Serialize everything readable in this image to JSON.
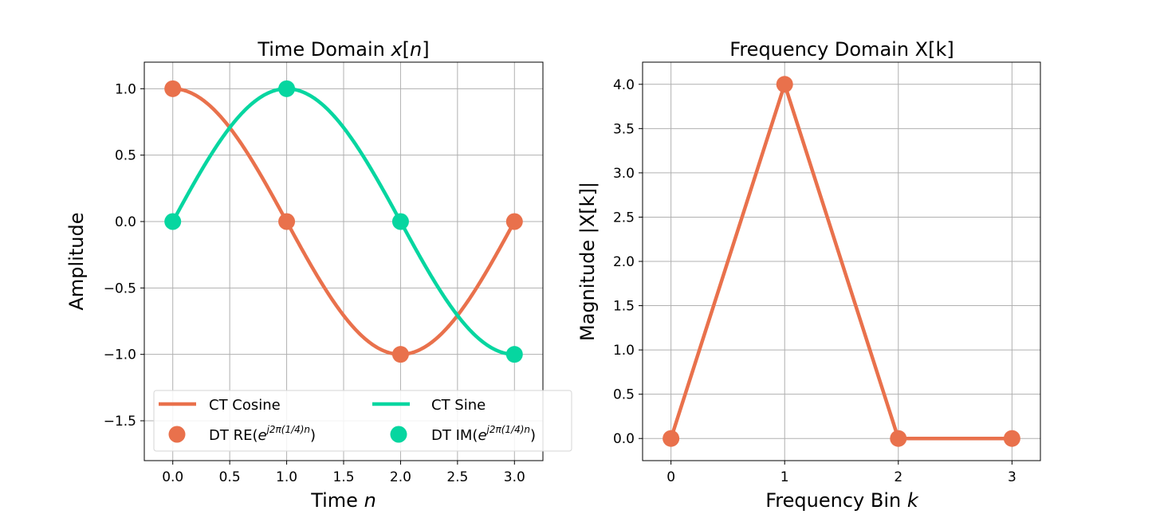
{
  "colors": {
    "cosine": "#E9714C",
    "sine": "#06D6A0",
    "grid": "#b0b0b0"
  },
  "chart_data": [
    {
      "type": "line",
      "title": "Time Domain x[n]",
      "title_parts": [
        "Time Domain ",
        "x",
        "[",
        "n",
        "]"
      ],
      "xlabel": "Time n",
      "ylabel": "Amplitude",
      "xlim": [
        -0.25,
        3.25
      ],
      "ylim": [
        -1.8,
        1.2
      ],
      "xticks": [
        0.0,
        0.5,
        1.0,
        1.5,
        2.0,
        2.5,
        3.0
      ],
      "xtick_labels": [
        "0.0",
        "0.5",
        "1.0",
        "1.5",
        "2.0",
        "2.5",
        "3.0"
      ],
      "yticks": [
        1.0,
        0.5,
        0.0,
        -0.5,
        -1.0,
        -1.5
      ],
      "ytick_labels": [
        "1.0",
        "0.5",
        "0.0",
        "−0.5",
        "−1.0",
        "−1.5"
      ],
      "grid": true,
      "legend_placement": "lower-center",
      "series": [
        {
          "name": "CT Cosine",
          "kind": "line",
          "function": "cos(2*pi*n/4)",
          "x_range": [
            0,
            3
          ],
          "color": "#E9714C"
        },
        {
          "name": "CT Sine",
          "kind": "line",
          "function": "sin(2*pi*n/4)",
          "x_range": [
            0,
            3
          ],
          "color": "#06D6A0"
        },
        {
          "name": "DT RE(e^{j2π(1/4)n})",
          "kind": "scatter",
          "x": [
            0,
            1,
            2,
            3
          ],
          "y": [
            1,
            0,
            -1,
            0
          ],
          "color": "#E9714C"
        },
        {
          "name": "DT IM(e^{j2π(1/4)n})",
          "kind": "scatter",
          "x": [
            0,
            1,
            2,
            3
          ],
          "y": [
            0,
            1,
            0,
            -1
          ],
          "color": "#06D6A0"
        }
      ],
      "legend": {
        "cos_label": "CT Cosine",
        "sin_label": "CT Sine",
        "re_prefix": "DT RE(",
        "im_prefix": "DT IM(",
        "exp_base": "e",
        "exp_sup": "j2π(1/4)n",
        "suffix": ")"
      }
    },
    {
      "type": "line",
      "title": "Frequency Domain X[k]",
      "xlabel": "Frequency Bin k",
      "ylabel": "Magnitude |X[k]|",
      "xlim": [
        -0.25,
        3.25
      ],
      "ylim": [
        -0.25,
        4.25
      ],
      "xticks": [
        0,
        1,
        2,
        3
      ],
      "xtick_labels": [
        "0",
        "1",
        "2",
        "3"
      ],
      "yticks": [
        0.0,
        0.5,
        1.0,
        1.5,
        2.0,
        2.5,
        3.0,
        3.5,
        4.0
      ],
      "ytick_labels": [
        "0.0",
        "0.5",
        "1.0",
        "1.5",
        "2.0",
        "2.5",
        "3.0",
        "3.5",
        "4.0"
      ],
      "grid": true,
      "series": [
        {
          "kind": "line+markers",
          "x": [
            0,
            1,
            2,
            3
          ],
          "y": [
            0,
            4,
            0,
            0
          ],
          "color": "#E9714C"
        }
      ]
    }
  ]
}
